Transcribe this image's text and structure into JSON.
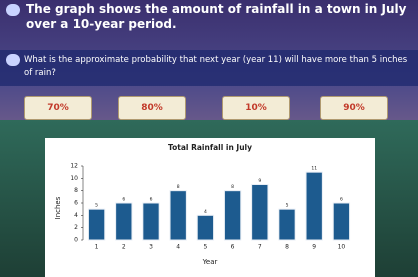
{
  "header": {
    "text": "The graph shows the  amount of rainfall in a town in July over a 10-year period."
  },
  "question": {
    "text": "What is the approximate probability that next year (year 11) will have more than 5 inches of rain?"
  },
  "options": [
    "70%",
    "80%",
    "10%",
    "90%"
  ],
  "chart_data": {
    "type": "bar",
    "title": "Total Rainfall in July",
    "x_label": "Year",
    "y_label": "Inches",
    "categories": [
      "1",
      "2",
      "3",
      "4",
      "5",
      "6",
      "7",
      "8",
      "9",
      "10"
    ],
    "values": [
      5,
      6,
      6,
      8,
      4,
      8,
      9,
      5,
      11,
      6
    ],
    "color": "#1d5b8f",
    "ylim": [
      0,
      12
    ],
    "yticks": [
      0,
      2,
      4,
      6,
      8,
      10,
      12
    ],
    "grid": false
  }
}
